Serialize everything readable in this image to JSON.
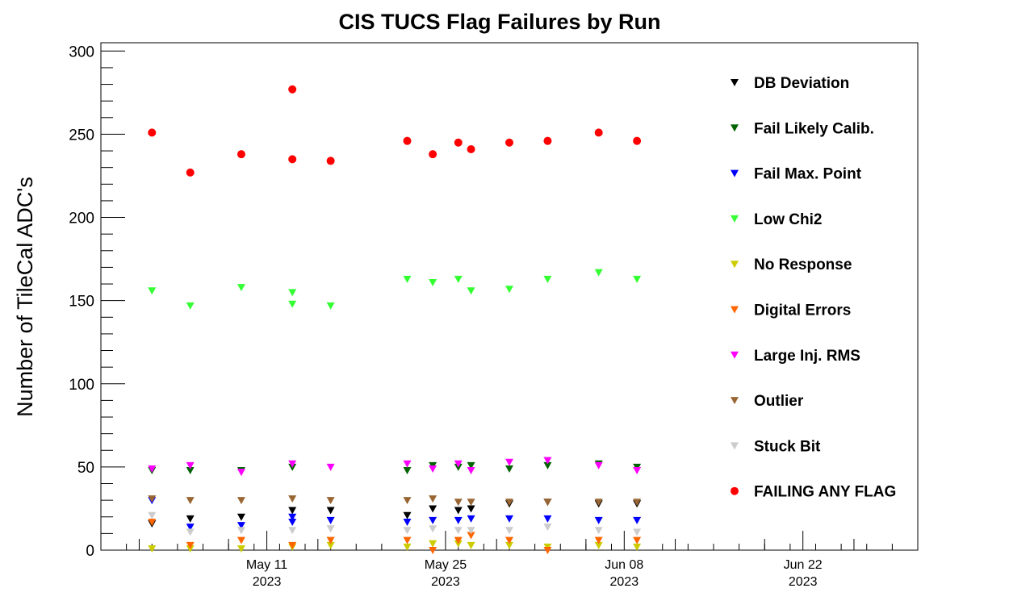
{
  "chart_data": {
    "type": "scatter",
    "title": "CIS TUCS Flag Failures by Run",
    "xlabel": "",
    "ylabel": "Number of TileCal ADC's",
    "ylim": [
      0,
      305
    ],
    "yticks": [
      0,
      50,
      100,
      150,
      200,
      250,
      300
    ],
    "xlim": [
      "2023-04-28",
      "2023-07-01"
    ],
    "xticks": [
      {
        "date": "2023-05-11",
        "line1": "May 11",
        "line2": "2023"
      },
      {
        "date": "2023-05-25",
        "line1": "May 25",
        "line2": "2023"
      },
      {
        "date": "2023-06-08",
        "line1": "Jun 08",
        "line2": "2023"
      },
      {
        "date": "2023-06-22",
        "line1": "Jun 22",
        "line2": "2023"
      }
    ],
    "x": [
      "2023-05-02",
      "2023-05-05",
      "2023-05-09",
      "2023-05-13",
      "2023-05-16",
      "2023-05-22",
      "2023-05-24",
      "2023-05-26",
      "2023-05-27",
      "2023-05-30",
      "2023-06-02",
      "2023-06-06",
      "2023-06-09"
    ],
    "grid": false,
    "legend_position": "right",
    "series": [
      {
        "name": "DB Deviation",
        "color": "#000000",
        "marker": "triangle-down",
        "x": [
          "2023-05-02",
          "2023-05-05",
          "2023-05-09",
          "2023-05-13",
          "2023-05-16",
          "2023-05-22",
          "2023-05-24",
          "2023-05-26",
          "2023-05-27",
          "2023-05-30",
          "2023-06-02",
          "2023-06-06",
          "2023-06-09"
        ],
        "values": [
          16,
          19,
          20,
          24,
          24,
          21,
          25,
          24,
          25,
          28,
          29,
          28,
          28
        ]
      },
      {
        "name": "Fail Likely Calib.",
        "color": "#006400",
        "marker": "triangle-down",
        "x": [
          "2023-05-02",
          "2023-05-05",
          "2023-05-09",
          "2023-05-13",
          "2023-05-22",
          "2023-05-24",
          "2023-05-26",
          "2023-05-27",
          "2023-05-30",
          "2023-06-02",
          "2023-06-06",
          "2023-06-09"
        ],
        "values": [
          48,
          48,
          48,
          50,
          48,
          51,
          50,
          51,
          49,
          51,
          52,
          50
        ]
      },
      {
        "name": "Fail Max. Point",
        "color": "#0000ff",
        "marker": "triangle-down",
        "x": [
          "2023-05-02",
          "2023-05-05",
          "2023-05-09",
          "2023-05-13",
          "2023-05-13",
          "2023-05-16",
          "2023-05-22",
          "2023-05-24",
          "2023-05-26",
          "2023-05-27",
          "2023-05-30",
          "2023-06-02",
          "2023-06-06",
          "2023-06-09"
        ],
        "values": [
          30,
          14,
          15,
          17,
          20,
          18,
          17,
          18,
          18,
          19,
          19,
          19,
          18,
          18
        ]
      },
      {
        "name": "Low Chi2",
        "color": "#33ff33",
        "marker": "triangle-down",
        "x": [
          "2023-05-02",
          "2023-05-05",
          "2023-05-09",
          "2023-05-13",
          "2023-05-13",
          "2023-05-16",
          "2023-05-22",
          "2023-05-24",
          "2023-05-26",
          "2023-05-27",
          "2023-05-30",
          "2023-06-02",
          "2023-06-06",
          "2023-06-09"
        ],
        "values": [
          156,
          147,
          158,
          155,
          148,
          147,
          163,
          161,
          163,
          156,
          157,
          163,
          167,
          163
        ]
      },
      {
        "name": "No Response",
        "color": "#cccc00",
        "marker": "triangle-down",
        "x": [
          "2023-05-02",
          "2023-05-05",
          "2023-05-09",
          "2023-05-13",
          "2023-05-16",
          "2023-05-22",
          "2023-05-24",
          "2023-05-26",
          "2023-05-27",
          "2023-05-30",
          "2023-06-02",
          "2023-06-06",
          "2023-06-09"
        ],
        "values": [
          1,
          1,
          1,
          2,
          3,
          2,
          4,
          4,
          3,
          3,
          2,
          3,
          2
        ]
      },
      {
        "name": "Digital Errors",
        "color": "#ff6600",
        "marker": "triangle-down",
        "x": [
          "2023-05-02",
          "2023-05-05",
          "2023-05-09",
          "2023-05-13",
          "2023-05-16",
          "2023-05-22",
          "2023-05-24",
          "2023-05-26",
          "2023-05-27",
          "2023-05-30",
          "2023-06-02",
          "2023-06-06",
          "2023-06-09"
        ],
        "values": [
          17,
          3,
          6,
          3,
          6,
          6,
          0,
          6,
          9,
          6,
          0,
          6,
          6
        ]
      },
      {
        "name": "Large Inj. RMS",
        "color": "#ff00ff",
        "marker": "triangle-down",
        "x": [
          "2023-05-02",
          "2023-05-05",
          "2023-05-09",
          "2023-05-13",
          "2023-05-16",
          "2023-05-22",
          "2023-05-24",
          "2023-05-26",
          "2023-05-27",
          "2023-05-30",
          "2023-06-02",
          "2023-06-06",
          "2023-06-09"
        ],
        "values": [
          49,
          51,
          47,
          52,
          50,
          52,
          49,
          52,
          48,
          53,
          54,
          51,
          48
        ]
      },
      {
        "name": "Outlier",
        "color": "#996633",
        "marker": "triangle-down",
        "x": [
          "2023-05-02",
          "2023-05-05",
          "2023-05-09",
          "2023-05-13",
          "2023-05-16",
          "2023-05-22",
          "2023-05-24",
          "2023-05-26",
          "2023-05-27",
          "2023-05-30",
          "2023-06-02",
          "2023-06-06",
          "2023-06-09"
        ],
        "values": [
          31,
          30,
          30,
          31,
          30,
          30,
          31,
          29,
          29,
          29,
          29,
          29,
          29
        ]
      },
      {
        "name": "Stuck Bit",
        "color": "#cccccc",
        "marker": "triangle-down",
        "x": [
          "2023-05-02",
          "2023-05-05",
          "2023-05-09",
          "2023-05-13",
          "2023-05-16",
          "2023-05-22",
          "2023-05-24",
          "2023-05-26",
          "2023-05-27",
          "2023-05-30",
          "2023-06-02",
          "2023-06-06",
          "2023-06-09"
        ],
        "values": [
          21,
          11,
          12,
          12,
          13,
          12,
          13,
          12,
          12,
          12,
          14,
          12,
          11
        ]
      },
      {
        "name": "FAILING ANY FLAG",
        "color": "#ff0000",
        "marker": "circle",
        "x": [
          "2023-05-02",
          "2023-05-05",
          "2023-05-09",
          "2023-05-13",
          "2023-05-13",
          "2023-05-16",
          "2023-05-22",
          "2023-05-24",
          "2023-05-26",
          "2023-05-27",
          "2023-05-30",
          "2023-06-02",
          "2023-06-06",
          "2023-06-09"
        ],
        "values": [
          251,
          227,
          238,
          277,
          235,
          234,
          246,
          238,
          245,
          241,
          245,
          246,
          251,
          246
        ]
      }
    ]
  }
}
